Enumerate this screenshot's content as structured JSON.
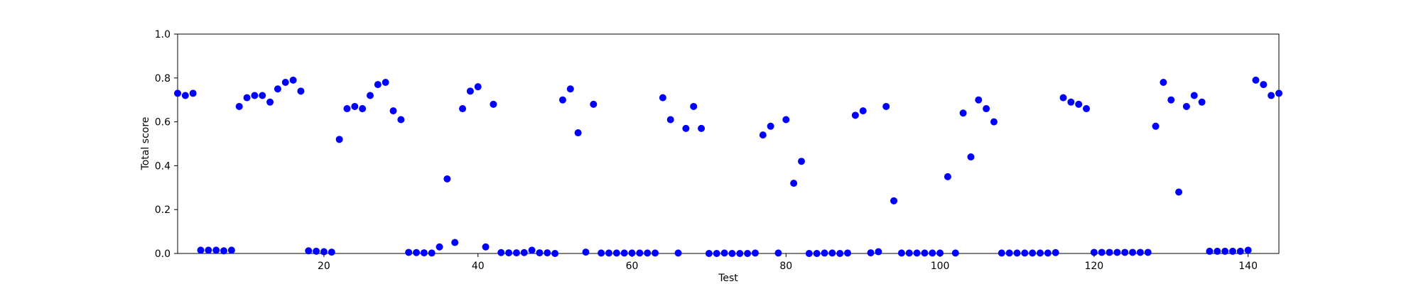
{
  "chart_data": {
    "type": "scatter",
    "xlabel": "Test",
    "ylabel": "Total score",
    "xlim": [
      1,
      144
    ],
    "ylim": [
      0,
      1
    ],
    "xticks": [
      20,
      40,
      60,
      80,
      100,
      120,
      140
    ],
    "yticks": [
      0.0,
      0.2,
      0.4,
      0.6,
      0.8,
      1.0
    ],
    "xtick_labels": [
      "20",
      "40",
      "60",
      "80",
      "100",
      "120",
      "140"
    ],
    "ytick_labels": [
      "0.0",
      "0.2",
      "0.4",
      "0.6",
      "0.8",
      "1.0"
    ],
    "grid": false,
    "legend": "none",
    "marker_color": "#0000ff",
    "series": [
      {
        "x": [
          1,
          2,
          3,
          4,
          5,
          6,
          7,
          8,
          9,
          10,
          11,
          12,
          13,
          14,
          15,
          16,
          17,
          18,
          19,
          20,
          21,
          22,
          23,
          24,
          25,
          26,
          27,
          28,
          29,
          30,
          31,
          32,
          33,
          34,
          35,
          36,
          37,
          38,
          39,
          40,
          41,
          42,
          43,
          44,
          45,
          46,
          47,
          48,
          49,
          50,
          51,
          52,
          53,
          54,
          55,
          56,
          57,
          58,
          59,
          60,
          61,
          62,
          63,
          64,
          65,
          66,
          67,
          68,
          69,
          70,
          71,
          72,
          73,
          74,
          75,
          76,
          77,
          78,
          79,
          80,
          81,
          82,
          83,
          84,
          85,
          86,
          87,
          88,
          89,
          90,
          91,
          92,
          93,
          94,
          95,
          96,
          97,
          98,
          99,
          100,
          101,
          102,
          103,
          104,
          105,
          106,
          107,
          108,
          109,
          110,
          111,
          112,
          113,
          114,
          115,
          116,
          117,
          118,
          119,
          120,
          121,
          122,
          123,
          124,
          125,
          126,
          127,
          128,
          129,
          130,
          131,
          132,
          133,
          134,
          135,
          136,
          137,
          138,
          139,
          140,
          141,
          142,
          143,
          144
        ],
        "y": [
          0.73,
          0.72,
          0.73,
          0.015,
          0.015,
          0.015,
          0.012,
          0.015,
          0.67,
          0.71,
          0.72,
          0.72,
          0.69,
          0.75,
          0.78,
          0.79,
          0.74,
          0.012,
          0.01,
          0.008,
          0.006,
          0.52,
          0.66,
          0.67,
          0.66,
          0.72,
          0.77,
          0.78,
          0.65,
          0.61,
          0.005,
          0.004,
          0.003,
          0.002,
          0.03,
          0.34,
          0.05,
          0.66,
          0.74,
          0.76,
          0.03,
          0.68,
          0.004,
          0.003,
          0.003,
          0.004,
          0.015,
          0.003,
          0.003,
          0.0,
          0.7,
          0.75,
          0.55,
          0.006,
          0.68,
          0.002,
          0.002,
          0.002,
          0.002,
          0.002,
          0.002,
          0.002,
          0.002,
          0.71,
          0.61,
          0.002,
          0.57,
          0.67,
          0.57,
          0.0,
          0.0,
          0.002,
          0.0,
          0.0,
          0.0,
          0.002,
          0.54,
          0.58,
          0.002,
          0.61,
          0.32,
          0.42,
          0.0,
          0.0,
          0.002,
          0.002,
          0.0,
          0.002,
          0.63,
          0.65,
          0.003,
          0.008,
          0.67,
          0.24,
          0.002,
          0.002,
          0.002,
          0.002,
          0.002,
          0.002,
          0.35,
          0.002,
          0.64,
          0.44,
          0.7,
          0.66,
          0.6,
          0.002,
          0.002,
          0.002,
          0.002,
          0.002,
          0.002,
          0.002,
          0.004,
          0.71,
          0.69,
          0.68,
          0.66,
          0.005,
          0.005,
          0.005,
          0.005,
          0.005,
          0.005,
          0.005,
          0.005,
          0.58,
          0.78,
          0.7,
          0.28,
          0.67,
          0.72,
          0.69,
          0.01,
          0.01,
          0.01,
          0.01,
          0.01,
          0.015,
          0.79,
          0.77,
          0.72,
          0.73
        ]
      }
    ]
  }
}
